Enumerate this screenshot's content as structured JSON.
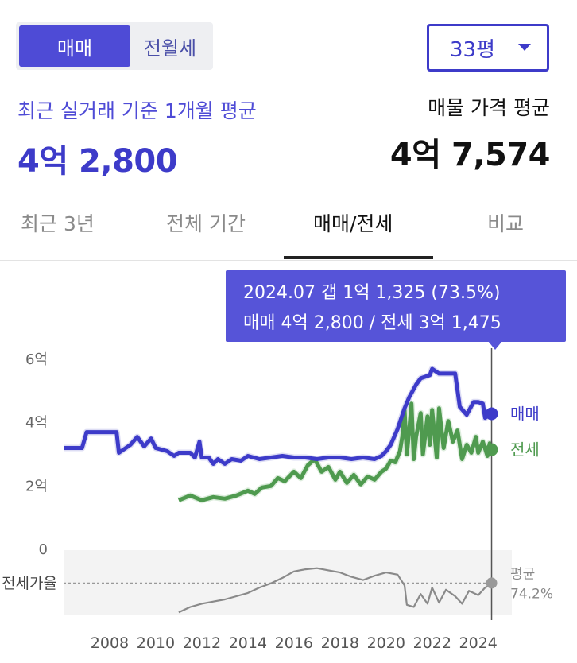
{
  "toggle": {
    "active": "매매",
    "inactive": "전월세"
  },
  "area_select": {
    "value": "33평"
  },
  "summary": {
    "recent_label": "최근 실거래 기준 1개월 평균",
    "recent_value": "4억 2,800",
    "listing_label": "매물 가격 평균",
    "listing_value": "4억 7,574"
  },
  "tabs": [
    "최근 3년",
    "전체 기간",
    "매매/전세",
    "비교"
  ],
  "tooltip": {
    "line1": "2024.07  갭 1억 1,325 (73.5%)",
    "line2": "매매 4억 2,800 / 전세 3억 1,475"
  },
  "colors": {
    "sale": "#3d3bc9",
    "jeonse": "#4f9a4f",
    "ratio": "#8a8a8a",
    "accent": "#5654d8"
  },
  "chart_data": {
    "type": "line",
    "x_tick_labels": [
      "2008",
      "2010",
      "2012",
      "2014",
      "2016",
      "2018",
      "2020",
      "2022",
      "2024"
    ],
    "y_tick_labels": [
      "6억",
      "4억",
      "2억",
      "0"
    ],
    "ylim": [
      0,
      60000
    ],
    "xlim": [
      2006.0,
      2024.7
    ],
    "ratio_label": "전세가율",
    "series": [
      {
        "name": "매매",
        "end_label": "매매",
        "points": [
          [
            2006.0,
            32000
          ],
          [
            2006.8,
            32000
          ],
          [
            2007.0,
            37000
          ],
          [
            2008.3,
            37000
          ],
          [
            2008.4,
            30500
          ],
          [
            2008.9,
            33000
          ],
          [
            2009.2,
            35500
          ],
          [
            2009.5,
            32500
          ],
          [
            2009.8,
            35000
          ],
          [
            2010.0,
            32000
          ],
          [
            2010.5,
            31000
          ],
          [
            2010.8,
            29500
          ],
          [
            2011.0,
            30500
          ],
          [
            2011.5,
            30500
          ],
          [
            2011.7,
            29000
          ],
          [
            2011.9,
            34000
          ],
          [
            2012.0,
            29000
          ],
          [
            2012.3,
            29000
          ],
          [
            2012.5,
            27000
          ],
          [
            2012.7,
            28500
          ],
          [
            2013.0,
            27000
          ],
          [
            2013.3,
            28500
          ],
          [
            2013.7,
            28000
          ],
          [
            2014.0,
            29500
          ],
          [
            2014.5,
            28500
          ],
          [
            2015.0,
            29000
          ],
          [
            2015.5,
            29500
          ],
          [
            2016.0,
            29000
          ],
          [
            2016.5,
            29000
          ],
          [
            2017.0,
            28500
          ],
          [
            2017.5,
            29000
          ],
          [
            2018.0,
            29000
          ],
          [
            2018.5,
            28500
          ],
          [
            2019.0,
            29000
          ],
          [
            2019.5,
            28500
          ],
          [
            2019.8,
            29500
          ],
          [
            2020.0,
            31000
          ],
          [
            2020.2,
            33000
          ],
          [
            2020.5,
            38000
          ],
          [
            2020.8,
            44500
          ],
          [
            2021.0,
            48000
          ],
          [
            2021.3,
            52000
          ],
          [
            2021.5,
            54000
          ],
          [
            2021.9,
            55000
          ],
          [
            2022.0,
            57000
          ],
          [
            2022.3,
            55500
          ],
          [
            2022.6,
            55500
          ],
          [
            2023.0,
            55500
          ],
          [
            2023.2,
            45000
          ],
          [
            2023.5,
            42500
          ],
          [
            2023.8,
            46500
          ],
          [
            2024.0,
            46500
          ],
          [
            2024.2,
            46000
          ],
          [
            2024.3,
            41500
          ],
          [
            2024.5,
            43000
          ],
          [
            2024.7,
            42800
          ]
        ]
      },
      {
        "name": "전세",
        "end_label": "전세",
        "points": [
          [
            2011.0,
            15500
          ],
          [
            2011.5,
            17000
          ],
          [
            2012.0,
            15500
          ],
          [
            2012.5,
            16500
          ],
          [
            2013.0,
            16000
          ],
          [
            2013.5,
            17000
          ],
          [
            2014.0,
            18500
          ],
          [
            2014.3,
            17500
          ],
          [
            2014.6,
            19500
          ],
          [
            2015.0,
            20000
          ],
          [
            2015.3,
            22500
          ],
          [
            2015.6,
            21500
          ],
          [
            2016.0,
            24500
          ],
          [
            2016.3,
            22500
          ],
          [
            2016.6,
            26500
          ],
          [
            2016.9,
            28500
          ],
          [
            2017.2,
            24500
          ],
          [
            2017.5,
            26000
          ],
          [
            2017.8,
            22000
          ],
          [
            2018.0,
            24500
          ],
          [
            2018.3,
            21000
          ],
          [
            2018.6,
            23500
          ],
          [
            2018.9,
            20500
          ],
          [
            2019.2,
            23000
          ],
          [
            2019.5,
            22000
          ],
          [
            2019.8,
            24500
          ],
          [
            2020.0,
            25500
          ],
          [
            2020.2,
            28000
          ],
          [
            2020.4,
            27500
          ],
          [
            2020.6,
            31000
          ],
          [
            2020.7,
            35500
          ],
          [
            2020.8,
            44000
          ],
          [
            2020.9,
            30000
          ],
          [
            2021.0,
            37500
          ],
          [
            2021.1,
            46000
          ],
          [
            2021.2,
            28500
          ],
          [
            2021.3,
            35500
          ],
          [
            2021.5,
            43000
          ],
          [
            2021.6,
            30000
          ],
          [
            2021.8,
            42000
          ],
          [
            2021.9,
            33000
          ],
          [
            2022.0,
            44000
          ],
          [
            2022.2,
            29000
          ],
          [
            2022.3,
            44500
          ],
          [
            2022.5,
            32000
          ],
          [
            2022.7,
            40500
          ],
          [
            2022.9,
            34000
          ],
          [
            2023.1,
            37500
          ],
          [
            2023.3,
            28500
          ],
          [
            2023.5,
            33000
          ],
          [
            2023.7,
            30500
          ],
          [
            2023.9,
            35500
          ],
          [
            2024.0,
            30500
          ],
          [
            2024.2,
            34000
          ],
          [
            2024.4,
            29500
          ],
          [
            2024.5,
            33500
          ],
          [
            2024.7,
            31475
          ]
        ]
      },
      {
        "name": "평균",
        "end_label": "평균",
        "end_value_label": "74.2%",
        "points": [
          [
            2011.0,
            0.47
          ],
          [
            2011.5,
            0.52
          ],
          [
            2012.0,
            0.55
          ],
          [
            2012.5,
            0.57
          ],
          [
            2013.0,
            0.59
          ],
          [
            2013.5,
            0.62
          ],
          [
            2014.0,
            0.65
          ],
          [
            2014.5,
            0.7
          ],
          [
            2015.0,
            0.74
          ],
          [
            2015.5,
            0.79
          ],
          [
            2016.0,
            0.85
          ],
          [
            2016.5,
            0.87
          ],
          [
            2017.0,
            0.88
          ],
          [
            2017.5,
            0.86
          ],
          [
            2018.0,
            0.84
          ],
          [
            2018.5,
            0.8
          ],
          [
            2019.0,
            0.77
          ],
          [
            2019.5,
            0.81
          ],
          [
            2020.0,
            0.84
          ],
          [
            2020.5,
            0.82
          ],
          [
            2020.8,
            0.72
          ],
          [
            2020.9,
            0.54
          ],
          [
            2021.2,
            0.52
          ],
          [
            2021.5,
            0.64
          ],
          [
            2021.8,
            0.55
          ],
          [
            2022.0,
            0.7
          ],
          [
            2022.3,
            0.56
          ],
          [
            2022.6,
            0.68
          ],
          [
            2023.0,
            0.62
          ],
          [
            2023.3,
            0.55
          ],
          [
            2023.6,
            0.67
          ],
          [
            2024.0,
            0.63
          ],
          [
            2024.3,
            0.7
          ],
          [
            2024.7,
            0.742
          ]
        ]
      }
    ],
    "highlight": {
      "x": 2024.58,
      "label": "2024.07"
    },
    "grid": false
  }
}
